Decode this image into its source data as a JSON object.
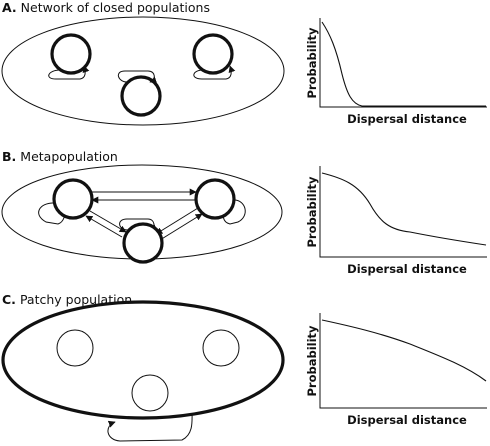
{
  "panels": [
    {
      "letter": "A.",
      "title": "Network of closed populations",
      "ylabel": "Probability",
      "xlabel": "Dispersal distance"
    },
    {
      "letter": "B.",
      "title": "Metapopulation",
      "ylabel": "Probability",
      "xlabel": "Dispersal distance"
    },
    {
      "letter": "C.",
      "title": "Patchy population",
      "ylabel": "Probability",
      "xlabel": "Dispersal distance"
    }
  ],
  "colors": {
    "line": "#111111",
    "background": "#ffffff"
  }
}
